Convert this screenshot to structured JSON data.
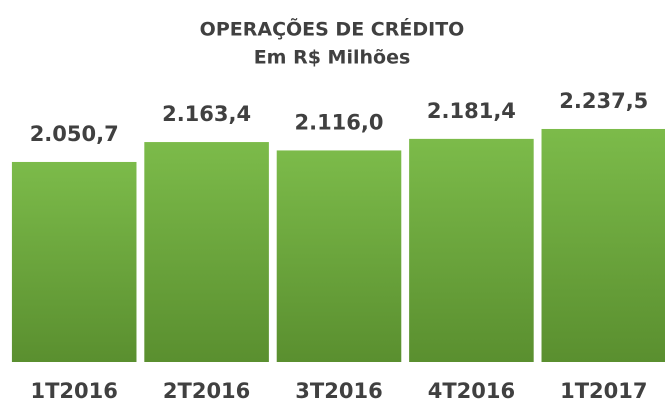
{
  "chart_data": {
    "type": "bar",
    "title": "OPERAÇÕES DE CRÉDITO",
    "subtitle": "Em R$ Milhões",
    "categories": [
      "1T2016",
      "2T2016",
      "3T2016",
      "4T2016",
      "1T2017"
    ],
    "values": [
      2050.7,
      2163.4,
      2116.0,
      2181.4,
      2237.5
    ],
    "value_labels": [
      "2.050,7",
      "2.163,4",
      "2.116,0",
      "2.181,4",
      "2.237,5"
    ],
    "color": "#6aa63a",
    "ylim": [
      918,
      2243
    ]
  }
}
